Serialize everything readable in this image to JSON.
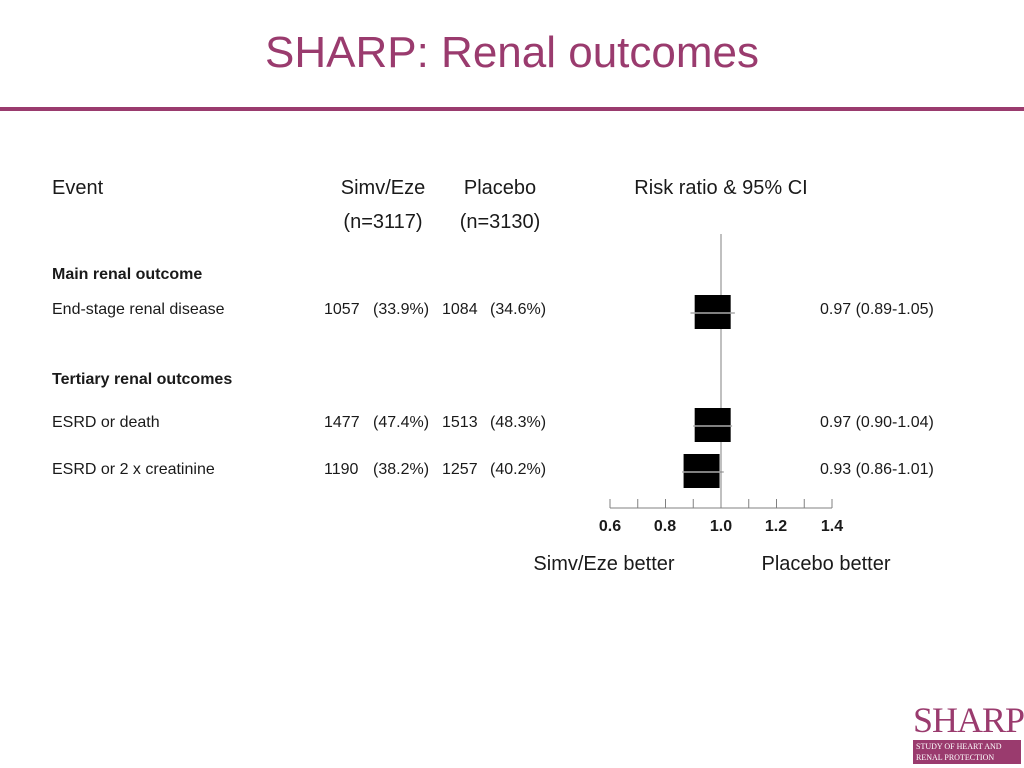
{
  "title": "SHARP: Renal outcomes",
  "headers": {
    "event": "Event",
    "simv_line1": "Simv/Eze",
    "simv_line2": "(n=3117)",
    "placebo_line1": "Placebo",
    "placebo_line2": "(n=3130)",
    "ratio": "Risk ratio & 95% CI"
  },
  "sections": [
    {
      "label": "Main renal outcome",
      "rows": [
        {
          "event": "End-stage renal disease",
          "simv_n": "1057",
          "simv_pct": "(33.9%)",
          "placebo_n": "1084",
          "placebo_pct": "(34.6%)",
          "rr_text": "0.97 (0.89-1.05)"
        }
      ]
    },
    {
      "label": "Tertiary renal outcomes",
      "rows": [
        {
          "event": "ESRD or death",
          "simv_n": "1477",
          "simv_pct": "(47.4%)",
          "placebo_n": "1513",
          "placebo_pct": "(48.3%)",
          "rr_text": "0.97 (0.90-1.04)"
        },
        {
          "event": "ESRD or 2 x creatinine",
          "simv_n": "1190",
          "simv_pct": "(38.2%)",
          "placebo_n": "1257",
          "placebo_pct": "(40.2%)",
          "rr_text": "0.93 (0.86-1.01)"
        }
      ]
    }
  ],
  "favours": {
    "left": "Simv/Eze better",
    "right": "Placebo better"
  },
  "chart_data": {
    "type": "forest",
    "x_ticks": [
      "0.6",
      "0.8",
      "1.0",
      "1.2",
      "1.4"
    ],
    "x_range": [
      0.6,
      1.4
    ],
    "reference_line": 1.0,
    "points": [
      {
        "label": "End-stage renal disease",
        "estimate": 0.97,
        "lower": 0.89,
        "upper": 1.05
      },
      {
        "label": "ESRD or death",
        "estimate": 0.97,
        "lower": 0.9,
        "upper": 1.04
      },
      {
        "label": "ESRD or 2 x creatinine",
        "estimate": 0.93,
        "lower": 0.86,
        "upper": 1.01
      }
    ],
    "box_color": "#000000"
  },
  "logo": {
    "word": "SHARP",
    "line1": "STUDY OF HEART AND",
    "line2": "RENAL PROTECTION"
  }
}
